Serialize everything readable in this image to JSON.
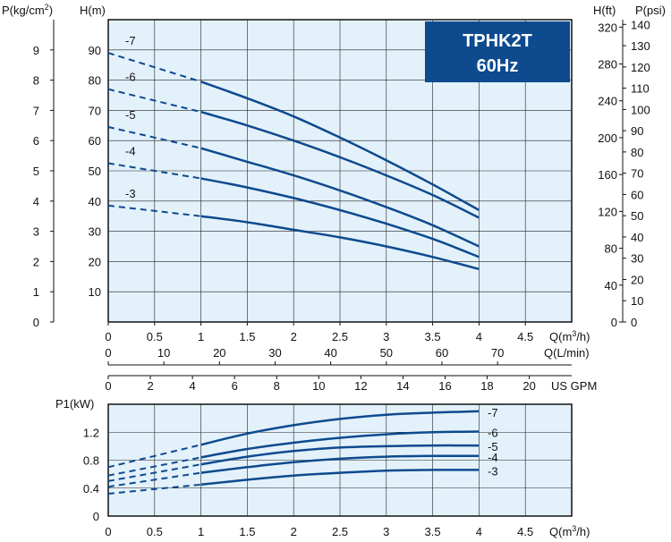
{
  "chart_data": [
    {
      "type": "line",
      "title": "TPHK2T 60Hz",
      "title_lines": [
        "TPHK2T",
        "60Hz"
      ],
      "xlabel": "Q(m³/h)",
      "ylabel": "H(m)",
      "xlim": [
        0,
        5
      ],
      "ylim": [
        0,
        100
      ],
      "x_ticks": [
        "0",
        "0.5",
        "1",
        "1.5",
        "2",
        "2.5",
        "3",
        "3.5",
        "4",
        "4.5"
      ],
      "y_ticks": [
        "10",
        "20",
        "30",
        "40",
        "50",
        "60",
        "70",
        "80",
        "90"
      ],
      "grid": true,
      "colors": {
        "line": "#0d4a8e",
        "plot_bg": "#e3f1fb",
        "title_box": "#0d4a8e",
        "title_text": "#ffffff"
      },
      "secondary_x_axes": [
        {
          "label": "Q(L/min)",
          "ticks": [
            "0",
            "10",
            "20",
            "30",
            "40",
            "50",
            "60",
            "70"
          ],
          "values": [
            0,
            10,
            20,
            30,
            40,
            50,
            60,
            70
          ]
        },
        {
          "label": "US GPM",
          "ticks": [
            "0",
            "2",
            "4",
            "6",
            "8",
            "10",
            "12",
            "14",
            "16",
            "18",
            "20"
          ],
          "values": [
            0,
            2,
            4,
            6,
            8,
            10,
            12,
            14,
            16,
            18,
            20
          ]
        }
      ],
      "secondary_y_axes": [
        {
          "label": "P(kg/cm²)",
          "label_base": "P(kg/cm",
          "label_sup": "2",
          "label_end": ")",
          "position": "left",
          "ticks": [
            "0",
            "1",
            "2",
            "3",
            "4",
            "5",
            "6",
            "7",
            "8",
            "9"
          ],
          "values": [
            0,
            1,
            2,
            3,
            4,
            5,
            6,
            7,
            8,
            9
          ]
        },
        {
          "label": "H(ft)",
          "position": "right",
          "ticks": [
            "0",
            "40",
            "80",
            "120",
            "160",
            "200",
            "240",
            "280",
            "320"
          ],
          "values": [
            0,
            40,
            80,
            120,
            160,
            200,
            240,
            280,
            320
          ]
        },
        {
          "label": "P(psi)",
          "position": "right",
          "ticks": [
            "0",
            "10",
            "20",
            "30",
            "40",
            "50",
            "60",
            "70",
            "80",
            "90",
            "100",
            "110",
            "120",
            "130",
            "140"
          ],
          "values": [
            0,
            10,
            20,
            30,
            40,
            50,
            60,
            70,
            80,
            90,
            100,
            110,
            120,
            130,
            140
          ]
        }
      ],
      "series": [
        {
          "name": "-7",
          "dashed_until": 1,
          "x": [
            0,
            1,
            1.5,
            2,
            2.5,
            3,
            3.5,
            4
          ],
          "y": [
            89,
            79.5,
            74,
            68,
            61,
            53.5,
            45.5,
            37
          ]
        },
        {
          "name": "-6",
          "dashed_until": 1,
          "x": [
            0,
            1,
            1.5,
            2,
            2.5,
            3,
            3.5,
            4
          ],
          "y": [
            77,
            69.5,
            65,
            60,
            54.5,
            48.5,
            42,
            34.5
          ]
        },
        {
          "name": "-5",
          "dashed_until": 1,
          "x": [
            0,
            1,
            1.5,
            2,
            2.5,
            3,
            3.5,
            4
          ],
          "y": [
            64.5,
            57.5,
            53,
            48.5,
            43.5,
            38,
            32,
            25
          ]
        },
        {
          "name": "-4",
          "dashed_until": 1,
          "x": [
            0,
            1,
            1.5,
            2,
            2.5,
            3,
            3.5,
            4
          ],
          "y": [
            52.5,
            47.5,
            44.5,
            41,
            37,
            32.5,
            27.5,
            21.5
          ]
        },
        {
          "name": "-3",
          "dashed_until": 1,
          "x": [
            0,
            1,
            1.5,
            2,
            2.5,
            3,
            3.5,
            4
          ],
          "y": [
            38.5,
            35,
            33,
            30.5,
            28,
            25,
            21.5,
            17.5
          ]
        }
      ]
    },
    {
      "type": "line",
      "xlabel": "Q(m³/h)",
      "ylabel": "P1(kW)",
      "xlim": [
        0,
        5
      ],
      "ylim": [
        0,
        1.6
      ],
      "x_ticks": [
        "0",
        "0.5",
        "1",
        "1.5",
        "2",
        "2.5",
        "3",
        "3.5",
        "4",
        "4.5"
      ],
      "y_ticks": [
        "0",
        "0.4",
        "0.8",
        "1.2"
      ],
      "grid": true,
      "series": [
        {
          "name": "-7",
          "dashed_until": 1,
          "x": [
            0,
            1,
            1.5,
            2,
            2.5,
            3,
            3.5,
            4
          ],
          "y": [
            0.7,
            1.02,
            1.18,
            1.3,
            1.39,
            1.45,
            1.48,
            1.5
          ]
        },
        {
          "name": "-6",
          "dashed_until": 1,
          "x": [
            0,
            1,
            1.5,
            2,
            2.5,
            3,
            3.5,
            4
          ],
          "y": [
            0.58,
            0.84,
            0.96,
            1.05,
            1.12,
            1.17,
            1.2,
            1.21
          ]
        },
        {
          "name": "-5",
          "dashed_until": 1,
          "x": [
            0,
            1,
            1.5,
            2,
            2.5,
            3,
            3.5,
            4
          ],
          "y": [
            0.5,
            0.74,
            0.85,
            0.93,
            0.98,
            1.0,
            1.01,
            1.01
          ]
        },
        {
          "name": "-4",
          "dashed_until": 1,
          "x": [
            0,
            1,
            1.5,
            2,
            2.5,
            3,
            3.5,
            4
          ],
          "y": [
            0.42,
            0.62,
            0.7,
            0.77,
            0.82,
            0.85,
            0.86,
            0.86
          ]
        },
        {
          "name": "-3",
          "dashed_until": 1,
          "x": [
            0,
            1,
            1.5,
            2,
            2.5,
            3,
            3.5,
            4
          ],
          "y": [
            0.32,
            0.45,
            0.52,
            0.58,
            0.62,
            0.65,
            0.66,
            0.66
          ]
        }
      ]
    }
  ]
}
